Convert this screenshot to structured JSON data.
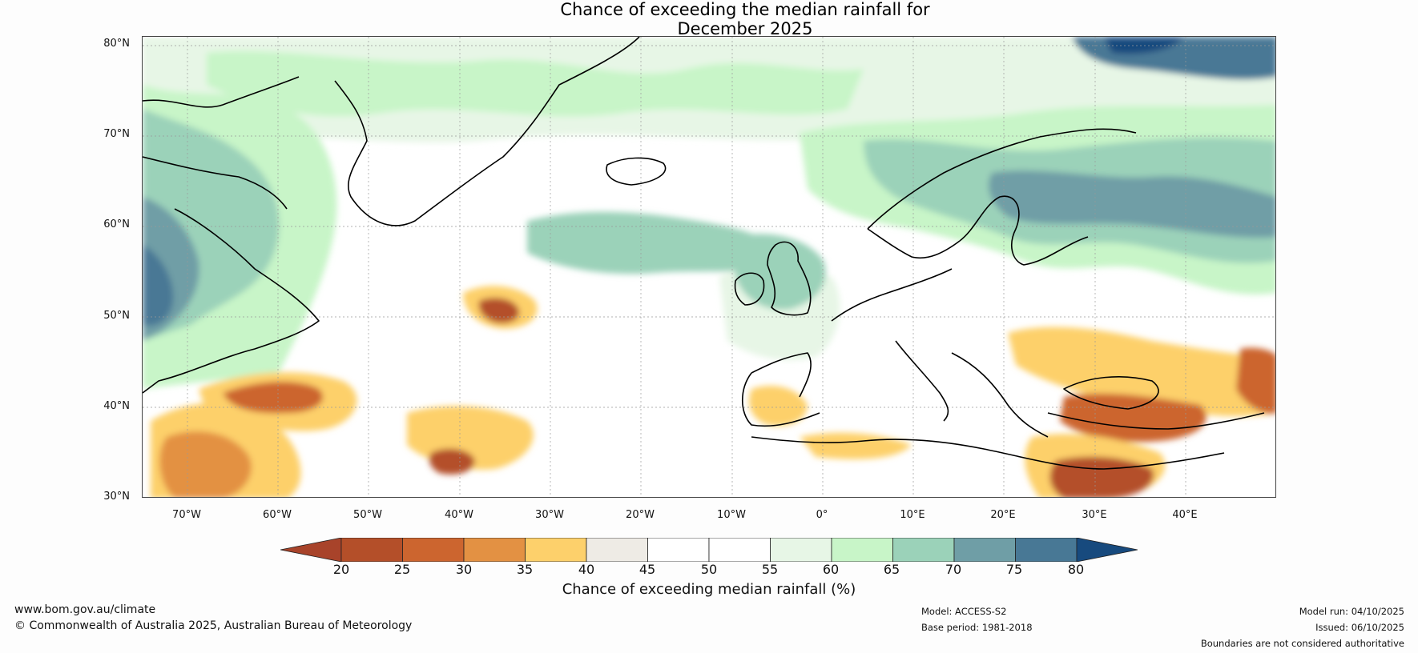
{
  "header": {
    "title_line1": "Chance of exceeding the median rainfall for",
    "title_line2": "December 2025"
  },
  "axes": {
    "lat_labels": [
      "80°N",
      "70°N",
      "60°N",
      "50°N",
      "40°N",
      "30°N"
    ],
    "lon_labels": [
      "70°W",
      "60°W",
      "50°W",
      "40°W",
      "30°W",
      "20°W",
      "10°W",
      "0°",
      "10°E",
      "20°E",
      "30°E",
      "40°E"
    ],
    "lat_range": [
      30,
      81
    ],
    "lon_range": [
      -75,
      50
    ]
  },
  "colorbar": {
    "ticks": [
      "20",
      "25",
      "30",
      "35",
      "40",
      "45",
      "50",
      "55",
      "60",
      "65",
      "70",
      "75",
      "80"
    ],
    "label": "Chance of exceeding median rainfall (%)",
    "colors": [
      "#a8432a",
      "#b44f29",
      "#cc652f",
      "#e39143",
      "#fdd06b",
      "#eeebe5",
      "#ffffff",
      "#ffffff",
      "#e7f6e6",
      "#c8f5c8",
      "#9bd2b9",
      "#6f9ea6",
      "#487895",
      "#174a7e"
    ]
  },
  "footer": {
    "website": "www.bom.gov.au/climate",
    "copyright": "© Commonwealth of Australia 2025, Australian Bureau of Meteorology",
    "model": "Model: ACCESS-S2",
    "base_period": "Base period: 1981-2018",
    "model_run": "Model run: 04/10/2025",
    "issued": "Issued: 06/10/2025",
    "disclaimer": "Boundaries are not considered authoritative"
  }
}
